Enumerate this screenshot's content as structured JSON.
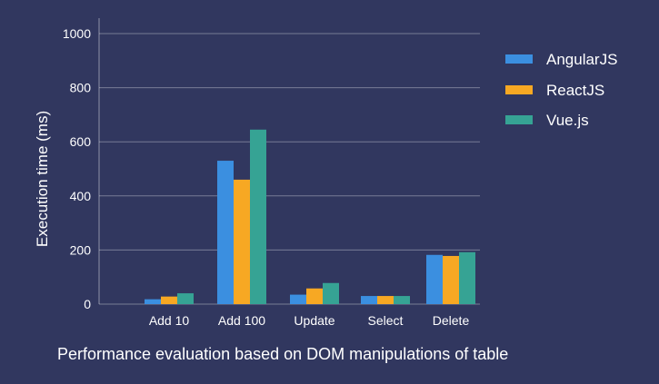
{
  "chart_data": {
    "type": "bar",
    "title": "",
    "caption": "Performance evaluation based on DOM manipulations of table",
    "xlabel": "",
    "ylabel": "Execution time (ms)",
    "ylim": [
      0,
      1000
    ],
    "yticks": [
      0,
      200,
      400,
      600,
      800,
      1000
    ],
    "grid": true,
    "legend_position": "right",
    "categories": [
      "Add 10",
      "Add 100",
      "Update",
      "Select",
      "Delete"
    ],
    "series": [
      {
        "name": "AngularJS",
        "color": "#3b8fe0",
        "values": [
          18,
          530,
          35,
          30,
          182
        ]
      },
      {
        "name": "ReactJS",
        "color": "#f7a823",
        "values": [
          28,
          460,
          58,
          30,
          178
        ]
      },
      {
        "name": "Vue.js",
        "color": "#36a394",
        "values": [
          40,
          645,
          78,
          30,
          192
        ]
      }
    ]
  }
}
